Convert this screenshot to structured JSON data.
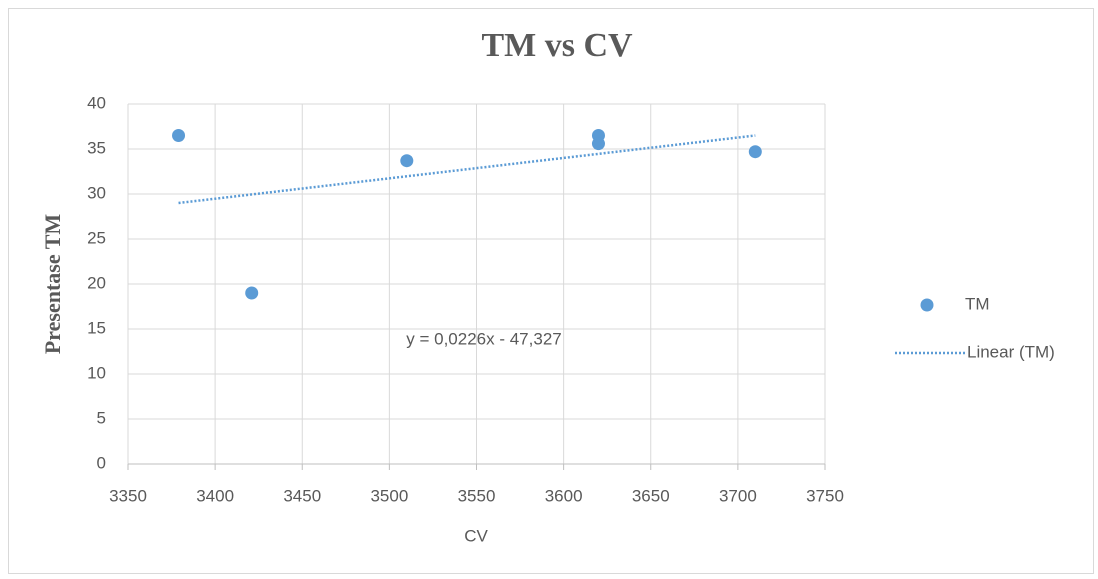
{
  "chart_data": {
    "type": "scatter",
    "title": "TM vs CV",
    "x_label": "CV",
    "y_label": "Presentase TM",
    "series": [
      {
        "name": "TM",
        "color": "#5b9bd5",
        "x": [
          3379,
          3421,
          3510,
          3620,
          3620,
          3710
        ],
        "values": [
          36.5,
          19,
          33.7,
          36.5,
          35.6,
          34.7
        ]
      }
    ],
    "trendline": {
      "name": "Linear (TM)",
      "color": "#5b9bd5",
      "x": [
        3379,
        3710
      ],
      "values": [
        29.0,
        36.5
      ]
    },
    "annotation": "y = 0,0226x - 47,327",
    "xlim": [
      3350,
      3750
    ],
    "xticks": [
      3350,
      3400,
      3450,
      3500,
      3550,
      3600,
      3650,
      3700,
      3750
    ],
    "ylim": [
      0,
      40
    ],
    "yticks": [
      0,
      5,
      10,
      15,
      20,
      25,
      30,
      35,
      40
    ],
    "grid": true,
    "legend": "right"
  }
}
